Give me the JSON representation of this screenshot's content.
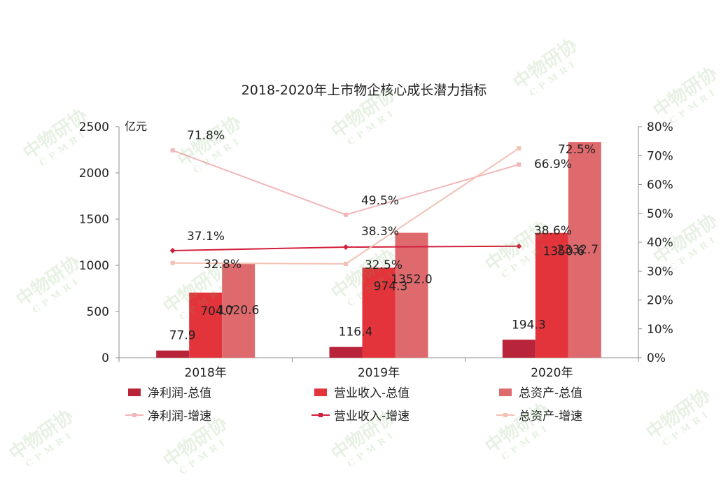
{
  "watermark": {
    "text_cn": "中物研协",
    "text_en": "CPMRI"
  },
  "chart_data": {
    "type": "bar",
    "title": "2018-2020年上市物企核心成长潜力指标",
    "left_unit": "亿元",
    "categories": [
      "2018年",
      "2019年",
      "2020年"
    ],
    "ylim": [
      0,
      2500
    ],
    "yticks": [
      "0",
      "500",
      "1000",
      "1500",
      "2000",
      "2500"
    ],
    "y2lim": [
      0,
      80
    ],
    "y2ticks": [
      "0%",
      "10%",
      "20%",
      "30%",
      "40%",
      "50%",
      "60%",
      "70%",
      "80%"
    ],
    "series": [
      {
        "name": "净利润-总值",
        "kind": "bar",
        "axis": "left",
        "color": "#b8243a",
        "values": [
          77.9,
          116.4,
          194.3
        ],
        "labels": [
          "77.9",
          "116.4",
          "194.3"
        ]
      },
      {
        "name": "营业收入-总值",
        "kind": "bar",
        "axis": "left",
        "color": "#e3343c",
        "values": [
          704.7,
          974.3,
          1350.6
        ],
        "labels": [
          "704.7",
          "974.3",
          "1350.6"
        ]
      },
      {
        "name": "总资产-总值",
        "kind": "bar",
        "axis": "left",
        "color": "#df6a6e",
        "values": [
          1020.6,
          1352.0,
          2332.7
        ],
        "labels": [
          "1020.6",
          "1352.0",
          "2332.7"
        ]
      },
      {
        "name": "净利润-增速",
        "kind": "line",
        "axis": "right",
        "color": "#f2b6b8",
        "values": [
          71.8,
          49.5,
          66.9
        ],
        "labels": [
          "71.8%",
          "49.5%",
          "66.9%"
        ]
      },
      {
        "name": "营业收入-增速",
        "kind": "line",
        "axis": "right",
        "color": "#d21f3c",
        "values": [
          37.1,
          38.3,
          38.6
        ],
        "labels": [
          "37.1%",
          "38.3%",
          "38.6%"
        ]
      },
      {
        "name": "总资产-增速",
        "kind": "line",
        "axis": "right",
        "color": "#f3c1b3",
        "values": [
          32.8,
          32.5,
          72.5
        ],
        "labels": [
          "32.8%",
          "32.5%",
          "72.5%"
        ]
      }
    ],
    "grid": false,
    "legend": "bottom"
  }
}
